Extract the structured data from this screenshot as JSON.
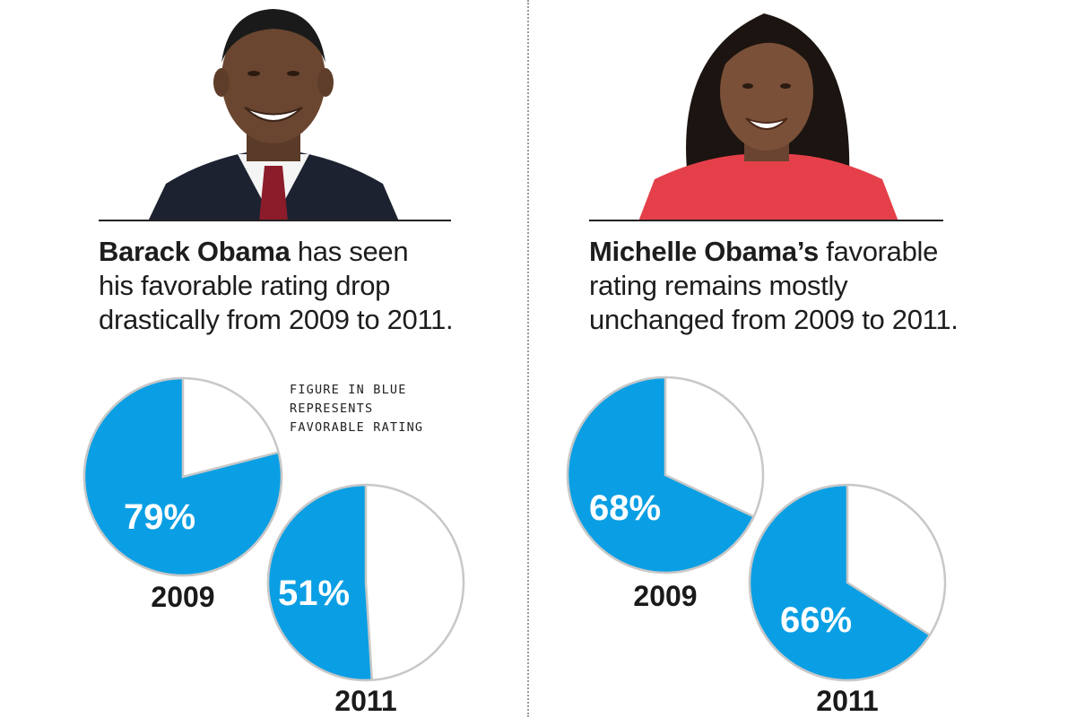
{
  "colors": {
    "favorable": "#0a9fe4",
    "rest": "#ffffff",
    "outline": "#c8c8c8"
  },
  "note": [
    "FIGURE IN BLUE",
    "REPRESENTS",
    "FAVORABLE RATING"
  ],
  "barack": {
    "name": "Barack Obama",
    "caption_rest_1": " has seen",
    "caption_line2": "his favorable rating drop",
    "caption_line3": "drastically from 2009 to 2011.",
    "photo_icon": "portrait-photo"
  },
  "michelle": {
    "name": "Michelle Obama’s",
    "caption_rest_1": " favorable",
    "caption_line2": "rating remains mostly",
    "caption_line3": "unchanged from 2009 to 2011.",
    "photo_icon": "portrait-photo"
  },
  "chart_data": [
    {
      "type": "pie",
      "title": "Barack Obama",
      "category": "2009",
      "values": [
        79,
        21
      ],
      "labels": [
        "79%",
        ""
      ],
      "series": "favorable rating"
    },
    {
      "type": "pie",
      "title": "Barack Obama",
      "category": "2011",
      "values": [
        51,
        49
      ],
      "labels": [
        "51%",
        ""
      ],
      "series": "favorable rating"
    },
    {
      "type": "pie",
      "title": "Michelle Obama",
      "category": "2009",
      "values": [
        68,
        32
      ],
      "labels": [
        "68%",
        ""
      ],
      "series": "favorable rating"
    },
    {
      "type": "pie",
      "title": "Michelle Obama",
      "category": "2011",
      "values": [
        66,
        34
      ],
      "labels": [
        "66%",
        ""
      ],
      "series": "favorable rating"
    }
  ]
}
